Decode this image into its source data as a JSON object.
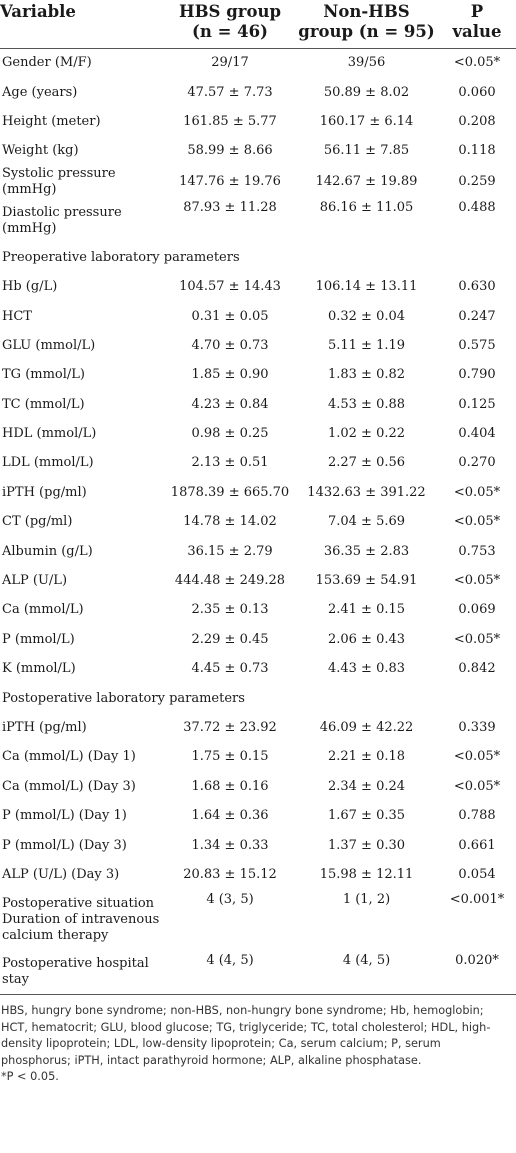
{
  "header": {
    "variable": "Variable",
    "hbs_line1": "HBS group",
    "hbs_line2": "(n = 46)",
    "non_line1": "Non-HBS",
    "non_line2": "group (n = 95)",
    "p_line1": "P",
    "p_line2": "value"
  },
  "rows": [
    {
      "label": "Gender (M/F)",
      "hbs": "29/17",
      "non": "39/56",
      "p": "<0.05*"
    },
    {
      "label": "Age (years)",
      "hbs": "47.57 ± 7.73",
      "non": "50.89 ± 8.02",
      "p": "0.060"
    },
    {
      "label": "Height (meter)",
      "hbs": "161.85 ± 5.77",
      "non": "160.17 ± 6.14",
      "p": "0.208"
    },
    {
      "label": "Weight (kg)",
      "hbs": "58.99 ± 8.66",
      "non": "56.11 ± 7.85",
      "p": "0.118"
    },
    {
      "label": "Systolic pressure (mmHg)",
      "hbs": "147.76 ± 19.76",
      "non": "142.67 ± 19.89",
      "p": "0.259"
    },
    {
      "label": "Diastolic pressure (mmHg)",
      "hbs": "87.93 ± 11.28",
      "non": "86.16 ± 11.05",
      "p": "0.488"
    },
    {
      "section": "Preoperative laboratory parameters"
    },
    {
      "label": "Hb (g/L)",
      "hbs": "104.57 ± 14.43",
      "non": "106.14 ± 13.11",
      "p": "0.630"
    },
    {
      "label": "HCT",
      "hbs": "0.31 ± 0.05",
      "non": "0.32 ± 0.04",
      "p": "0.247"
    },
    {
      "label": "GLU (mmol/L)",
      "hbs": "4.70 ± 0.73",
      "non": "5.11 ± 1.19",
      "p": "0.575"
    },
    {
      "label": "TG (mmol/L)",
      "hbs": "1.85 ± 0.90",
      "non": "1.83 ± 0.82",
      "p": "0.790"
    },
    {
      "label": "TC (mmol/L)",
      "hbs": "4.23 ± 0.84",
      "non": "4.53 ± 0.88",
      "p": "0.125"
    },
    {
      "label": "HDL (mmol/L)",
      "hbs": "0.98 ± 0.25",
      "non": "1.02 ± 0.22",
      "p": "0.404"
    },
    {
      "label": "LDL (mmol/L)",
      "hbs": "2.13 ± 0.51",
      "non": "2.27 ± 0.56",
      "p": "0.270"
    },
    {
      "label": "iPTH (pg/ml)",
      "hbs": "1878.39 ± 665.70",
      "non": "1432.63 ± 391.22",
      "p": "<0.05*"
    },
    {
      "label": "CT (pg/ml)",
      "hbs": "14.78 ± 14.02",
      "non": "7.04 ± 5.69",
      "p": "<0.05*"
    },
    {
      "label": "Albumin (g/L)",
      "hbs": "36.15 ± 2.79",
      "non": "36.35 ± 2.83",
      "p": "0.753"
    },
    {
      "label": "ALP (U/L)",
      "hbs": "444.48 ± 249.28",
      "non": "153.69 ± 54.91",
      "p": "<0.05*"
    },
    {
      "label": "Ca (mmol/L)",
      "hbs": "2.35 ± 0.13",
      "non": "2.41 ± 0.15",
      "p": "0.069"
    },
    {
      "label": "P (mmol/L)",
      "hbs": "2.29 ± 0.45",
      "non": "2.06 ± 0.43",
      "p": "<0.05*"
    },
    {
      "label": "K (mmol/L)",
      "hbs": "4.45 ± 0.73",
      "non": "4.43 ± 0.83",
      "p": "0.842"
    },
    {
      "section": "Postoperative laboratory parameters"
    },
    {
      "label": "iPTH (pg/ml)",
      "hbs": "37.72 ± 23.92",
      "non": "46.09 ± 42.22",
      "p": "0.339"
    },
    {
      "label": "Ca (mmol/L) (Day 1)",
      "hbs": "1.75 ± 0.15",
      "non": "2.21 ± 0.18",
      "p": "<0.05*"
    },
    {
      "label": "Ca (mmol/L) (Day 3)",
      "hbs": "1.68 ± 0.16",
      "non": "2.34 ± 0.24",
      "p": "<0.05*"
    },
    {
      "label": "P (mmol/L) (Day 1)",
      "hbs": "1.64 ± 0.36",
      "non": "1.67 ± 0.35",
      "p": "0.788"
    },
    {
      "label": "P (mmol/L) (Day 3)",
      "hbs": "1.34 ± 0.33",
      "non": "1.37 ± 0.30",
      "p": "0.661"
    },
    {
      "label": "ALP (U/L) (Day 3)",
      "hbs": "20.83 ± 15.12",
      "non": "15.98 ± 12.11",
      "p": "0.054"
    },
    {
      "label": "Postoperative situation Duration of intravenous calcium therapy",
      "hbs": "4 (3, 5)",
      "non": "1 (1, 2)",
      "p": "<0.001*"
    },
    {
      "label": "Postoperative hospital stay",
      "hbs": "4 (4, 5)",
      "non": "4 (4, 5)",
      "p": "0.020*"
    }
  ],
  "footnote": "HBS, hungry bone syndrome; non-HBS, non-hungry bone syndrome; Hb, hemoglobin; HCT, hematocrit; GLU, blood glucose; TG, triglyceride; TC, total cholesterol; HDL, high-density lipoprotein; LDL, low-density lipoprotein; Ca, serum calcium; P, serum phosphorus; iPTH, intact parathyroid hormone; ALP, alkaline phosphatase.",
  "significance": "*P < 0.05."
}
